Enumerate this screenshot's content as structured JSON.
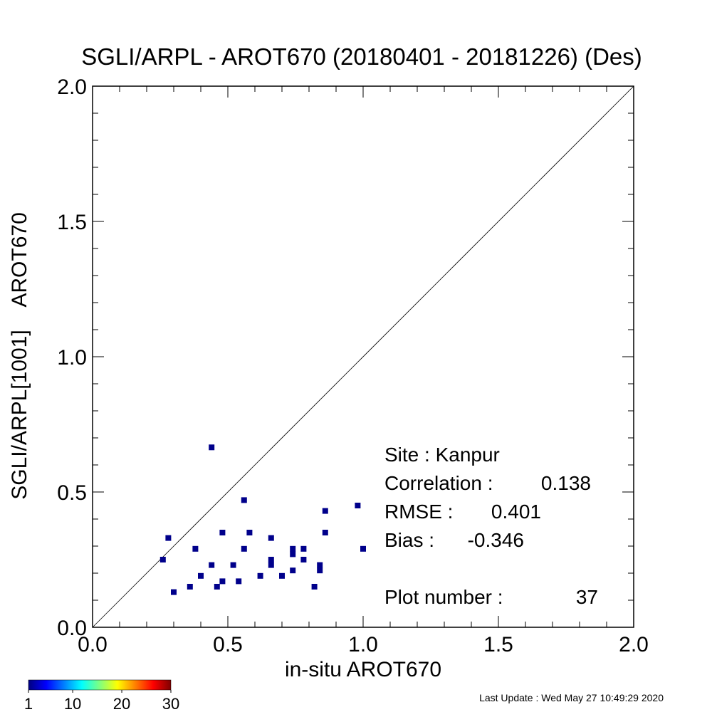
{
  "chart_data": {
    "type": "scatter",
    "title": "SGLI/ARPL - AROT670 (20180401 - 20181226) (Des)",
    "xlabel": "in-situ AROT670",
    "ylabel": "SGLI/ARPL[1001]    AROT670",
    "xlim": [
      0.0,
      2.0
    ],
    "ylim": [
      0.0,
      2.0
    ],
    "x_tick_labels": [
      "0.0",
      "0.5",
      "1.0",
      "1.5",
      "2.0"
    ],
    "y_tick_labels": [
      "0.0",
      "0.5",
      "1.0",
      "1.5",
      "2.0"
    ],
    "reference_line": "1:1",
    "grid": false,
    "marker_color": "#00008b",
    "points": [
      {
        "x": 0.44,
        "y": 0.665
      },
      {
        "x": 0.56,
        "y": 0.47
      },
      {
        "x": 0.98,
        "y": 0.45
      },
      {
        "x": 0.86,
        "y": 0.43
      },
      {
        "x": 0.48,
        "y": 0.35
      },
      {
        "x": 0.58,
        "y": 0.35
      },
      {
        "x": 0.86,
        "y": 0.35
      },
      {
        "x": 0.28,
        "y": 0.33
      },
      {
        "x": 0.66,
        "y": 0.33
      },
      {
        "x": 0.38,
        "y": 0.29
      },
      {
        "x": 0.56,
        "y": 0.29
      },
      {
        "x": 0.74,
        "y": 0.29
      },
      {
        "x": 0.78,
        "y": 0.29
      },
      {
        "x": 1.0,
        "y": 0.29
      },
      {
        "x": 0.74,
        "y": 0.27
      },
      {
        "x": 0.26,
        "y": 0.25
      },
      {
        "x": 0.66,
        "y": 0.25
      },
      {
        "x": 0.78,
        "y": 0.25
      },
      {
        "x": 0.44,
        "y": 0.23
      },
      {
        "x": 0.52,
        "y": 0.23
      },
      {
        "x": 0.66,
        "y": 0.23
      },
      {
        "x": 0.84,
        "y": 0.23
      },
      {
        "x": 0.74,
        "y": 0.21
      },
      {
        "x": 0.84,
        "y": 0.21
      },
      {
        "x": 0.4,
        "y": 0.19
      },
      {
        "x": 0.62,
        "y": 0.19
      },
      {
        "x": 0.7,
        "y": 0.19
      },
      {
        "x": 0.48,
        "y": 0.17
      },
      {
        "x": 0.54,
        "y": 0.17
      },
      {
        "x": 0.36,
        "y": 0.15
      },
      {
        "x": 0.46,
        "y": 0.15
      },
      {
        "x": 0.82,
        "y": 0.15
      },
      {
        "x": 0.3,
        "y": 0.13
      }
    ],
    "stats": {
      "site_label": "Site : Kanpur",
      "correlation_label": "Correlation :",
      "correlation_value": "0.138",
      "rmse_label": "RMSE :",
      "rmse_value": "0.401",
      "bias_label": "Bias :",
      "bias_value": "-0.346",
      "plot_number_label": "Plot number :",
      "plot_number_value": "37"
    },
    "colorbar": {
      "range": [
        1,
        30
      ],
      "tick_labels": [
        "1",
        "10",
        "20",
        "30"
      ],
      "tick_values": [
        1,
        10,
        20,
        30
      ],
      "colormap": "jet"
    }
  },
  "footer": {
    "last_update": "Last Update : Wed May 27 10:49:29 2020"
  }
}
